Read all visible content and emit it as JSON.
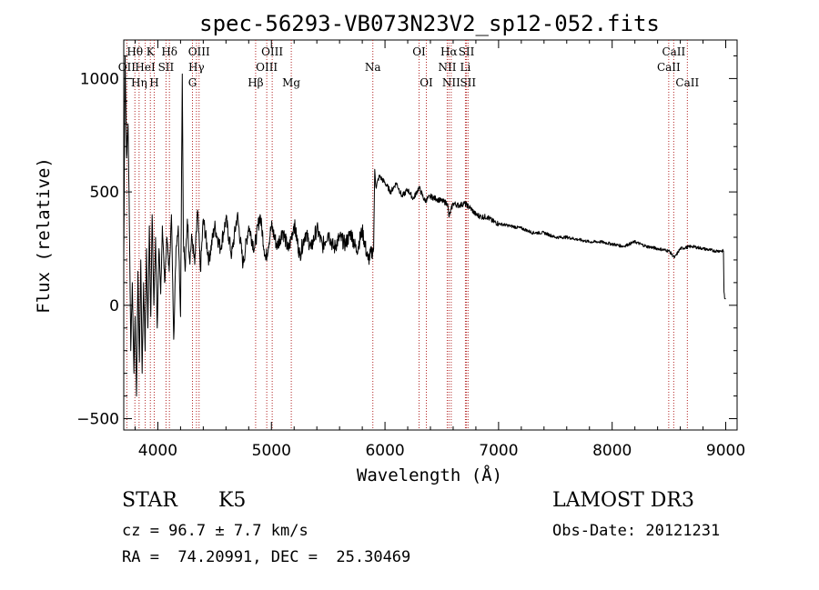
{
  "chart_data": {
    "type": "line",
    "title": "spec-56293-VB073N23V2_sp12-052.fits",
    "xlabel": "Wavelength (Å)",
    "ylabel": "Flux (relative)",
    "xlim": [
      3700,
      9100
    ],
    "ylim": [
      -550,
      1170
    ],
    "xticks": [
      4000,
      5000,
      6000,
      7000,
      8000,
      9000
    ],
    "xtick_labels": [
      "4000",
      "5000",
      "6000",
      "7000",
      "8000",
      "9000"
    ],
    "yticks": [
      -500,
      0,
      500,
      1000
    ],
    "ytick_labels": [
      "−500",
      "0",
      "500",
      "1000"
    ],
    "grid": false,
    "line_color": "#000000",
    "marker_color": "#b22222",
    "series": [
      {
        "name": "flux",
        "x": [
          3700,
          3712,
          3725,
          3738,
          3750,
          3762,
          3775,
          3790,
          3800,
          3812,
          3825,
          3838,
          3850,
          3862,
          3875,
          3888,
          3900,
          3912,
          3925,
          3938,
          3950,
          3965,
          3980,
          3995,
          4010,
          4025,
          4040,
          4060,
          4080,
          4100,
          4120,
          4140,
          4160,
          4180,
          4200,
          4215,
          4225,
          4240,
          4260,
          4280,
          4300,
          4325,
          4350,
          4375,
          4400,
          4450,
          4500,
          4550,
          4600,
          4650,
          4700,
          4750,
          4800,
          4850,
          4900,
          4950,
          5000,
          5050,
          5100,
          5150,
          5200,
          5250,
          5300,
          5350,
          5400,
          5450,
          5500,
          5550,
          5600,
          5650,
          5700,
          5750,
          5800,
          5850,
          5900,
          5910,
          5920,
          5950,
          6000,
          6050,
          6100,
          6150,
          6200,
          6250,
          6300,
          6350,
          6400,
          6450,
          6500,
          6550,
          6563,
          6600,
          6650,
          6700,
          6750,
          6800,
          6850,
          6900,
          6950,
          7000,
          7100,
          7200,
          7300,
          7400,
          7500,
          7600,
          7700,
          7800,
          7900,
          8000,
          8100,
          8200,
          8300,
          8400,
          8500,
          8550,
          8600,
          8700,
          8800,
          8900,
          8980,
          8985,
          8990,
          9000
        ],
        "y": [
          200,
          1100,
          650,
          800,
          350,
          -200,
          100,
          -300,
          -50,
          -400,
          150,
          -250,
          200,
          -300,
          100,
          -200,
          250,
          -100,
          350,
          -50,
          400,
          0,
          300,
          -100,
          250,
          50,
          350,
          100,
          300,
          150,
          400,
          -150,
          250,
          350,
          -50,
          1020,
          300,
          150,
          380,
          200,
          300,
          180,
          420,
          150,
          380,
          200,
          350,
          250,
          380,
          220,
          400,
          180,
          350,
          250,
          400,
          200,
          350,
          260,
          330,
          240,
          360,
          220,
          320,
          250,
          340,
          260,
          320,
          250,
          300,
          270,
          320,
          240,
          330,
          200,
          250,
          600,
          520,
          570,
          540,
          500,
          540,
          480,
          510,
          470,
          520,
          460,
          480,
          470,
          460,
          450,
          390,
          450,
          440,
          450,
          430,
          400,
          390,
          390,
          370,
          360,
          350,
          340,
          320,
          320,
          300,
          300,
          290,
          280,
          280,
          270,
          260,
          280,
          260,
          250,
          240,
          210,
          250,
          260,
          250,
          240,
          240,
          60,
          30,
          30
        ]
      }
    ],
    "spectral_lines": [
      {
        "name": "Hθ",
        "wavelength": 3798,
        "row": 1
      },
      {
        "name": "OII",
        "wavelength": 3727,
        "row": 2
      },
      {
        "name": "Hη",
        "wavelength": 3835,
        "row": 3
      },
      {
        "name": "HeI",
        "wavelength": 3889,
        "row": 2
      },
      {
        "name": "K",
        "wavelength": 3934,
        "row": 1
      },
      {
        "name": "H",
        "wavelength": 3968,
        "row": 3
      },
      {
        "name": "SII",
        "wavelength": 4072,
        "row": 2
      },
      {
        "name": "Hδ",
        "wavelength": 4102,
        "row": 1
      },
      {
        "name": "OIII",
        "wavelength": 4363,
        "row": 1
      },
      {
        "name": "Hγ",
        "wavelength": 4340,
        "row": 2
      },
      {
        "name": "G",
        "wavelength": 4305,
        "row": 3
      },
      {
        "name": "Hβ",
        "wavelength": 4861,
        "row": 3
      },
      {
        "name": "OIII",
        "wavelength": 5007,
        "row": 1
      },
      {
        "name": "OIII",
        "wavelength": 4959,
        "row": 2
      },
      {
        "name": "Mg",
        "wavelength": 5175,
        "row": 3
      },
      {
        "name": "Na",
        "wavelength": 5893,
        "row": 2
      },
      {
        "name": "OI",
        "wavelength": 6300,
        "row": 1
      },
      {
        "name": "OI",
        "wavelength": 6364,
        "row": 3
      },
      {
        "name": "Hα",
        "wavelength": 6563,
        "row": 1
      },
      {
        "name": "NII",
        "wavelength": 6548,
        "row": 2
      },
      {
        "name": "NII",
        "wavelength": 6583,
        "row": 3
      },
      {
        "name": "SII",
        "wavelength": 6717,
        "row": 1
      },
      {
        "name": "Li",
        "wavelength": 6708,
        "row": 2
      },
      {
        "name": "SII",
        "wavelength": 6731,
        "row": 3
      },
      {
        "name": "CaII",
        "wavelength": 8542,
        "row": 1
      },
      {
        "name": "CaII",
        "wavelength": 8498,
        "row": 2
      },
      {
        "name": "CaII",
        "wavelength": 8662,
        "row": 3
      }
    ]
  },
  "info": {
    "class": "STAR",
    "subclass": "K5",
    "survey": "LAMOST DR3",
    "cz": "cz = 96.7 ± 7.7 km/s",
    "obs_date": "Obs-Date: 20121231",
    "coords": "RA =  74.20991, DEC =  25.30469"
  }
}
